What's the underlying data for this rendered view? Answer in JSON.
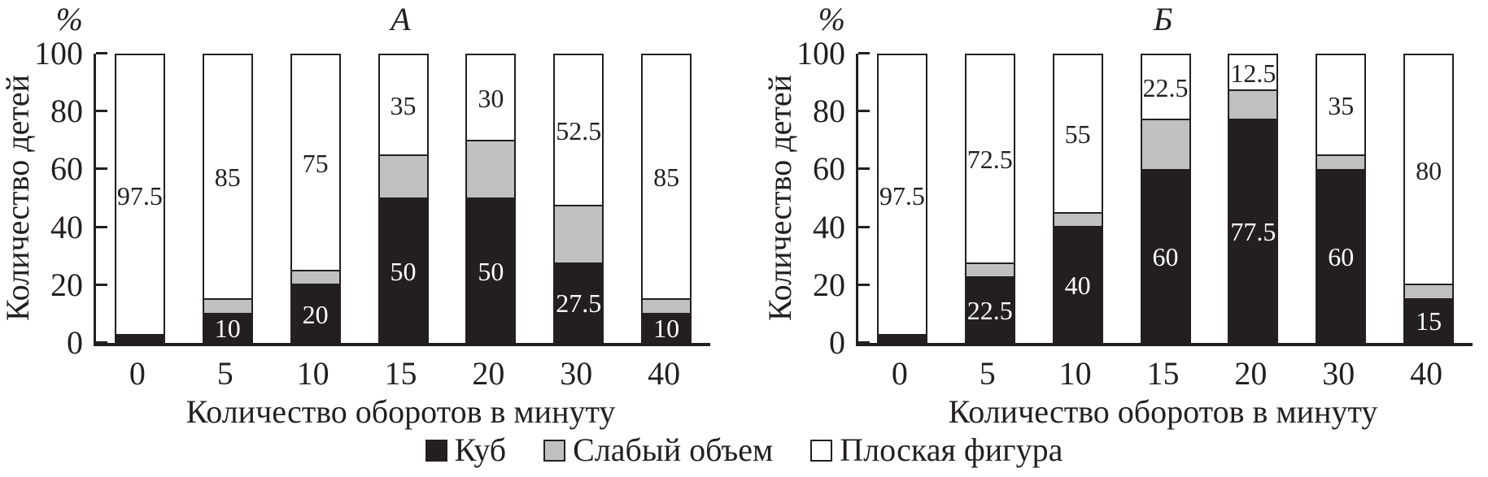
{
  "legend": {
    "items": [
      {
        "label": "Куб",
        "color": "#231f20"
      },
      {
        "label": "Слабый объем",
        "color": "#c0c0c0"
      },
      {
        "label": "Плоская фигура",
        "color": "#ffffff"
      }
    ]
  },
  "colors": {
    "axis": "#231f20",
    "cube": "#231f20",
    "weak_volume": "#c0c0c0",
    "flat_figure": "#ffffff",
    "background": "#ffffff"
  },
  "chart_data": [
    {
      "type": "bar",
      "stacked": true,
      "title": "А",
      "y_unit": "%",
      "ylabel": "Количество детей",
      "xlabel": "Количество оборотов в минуту",
      "ylim": [
        0,
        100
      ],
      "yticks": [
        0,
        20,
        40,
        60,
        80,
        100
      ],
      "grid": false,
      "legend_position": "bottom-center",
      "categories": [
        "0",
        "5",
        "10",
        "15",
        "20",
        "30",
        "40"
      ],
      "series": [
        {
          "name": "Куб",
          "color": "#231f20",
          "label_color": "#ffffff",
          "values": [
            2.5,
            10,
            20,
            50,
            50,
            27.5,
            10
          ],
          "labels": [
            "",
            "10",
            "20",
            "50",
            "50",
            "27.5",
            "10"
          ]
        },
        {
          "name": "Слабый объем",
          "color": "#c0c0c0",
          "label_color": "#231f20",
          "values": [
            0,
            5,
            5,
            15,
            20,
            20,
            5
          ],
          "labels": [
            "",
            "",
            "",
            "",
            "",
            "",
            ""
          ]
        },
        {
          "name": "Плоская фигура",
          "color": "#ffffff",
          "label_color": "#231f20",
          "values": [
            97.5,
            85,
            75,
            35,
            30,
            52.5,
            85
          ],
          "labels": [
            "97.5",
            "85",
            "75",
            "35",
            "30",
            "52.5",
            "85"
          ]
        }
      ]
    },
    {
      "type": "bar",
      "stacked": true,
      "title": "Б",
      "y_unit": "%",
      "ylabel": "Количество детей",
      "xlabel": "Количество оборотов в минуту",
      "ylim": [
        0,
        100
      ],
      "yticks": [
        0,
        20,
        40,
        60,
        80,
        100
      ],
      "grid": false,
      "legend_position": "bottom-center",
      "categories": [
        "0",
        "5",
        "10",
        "15",
        "20",
        "30",
        "40"
      ],
      "series": [
        {
          "name": "Куб",
          "color": "#231f20",
          "label_color": "#ffffff",
          "values": [
            2.5,
            22.5,
            40,
            60,
            77.5,
            60,
            15
          ],
          "labels": [
            "",
            "22.5",
            "40",
            "60",
            "77.5",
            "60",
            "15"
          ]
        },
        {
          "name": "Слабый объем",
          "color": "#c0c0c0",
          "label_color": "#231f20",
          "values": [
            0,
            5,
            5,
            17.5,
            10,
            5,
            5
          ],
          "labels": [
            "",
            "",
            "",
            "",
            "",
            "",
            ""
          ]
        },
        {
          "name": "Плоская фигура",
          "color": "#ffffff",
          "label_color": "#231f20",
          "values": [
            97.5,
            72.5,
            55,
            22.5,
            12.5,
            35,
            80
          ],
          "labels": [
            "97.5",
            "72.5",
            "55",
            "22.5",
            "12.5",
            "35",
            "80"
          ]
        }
      ]
    }
  ]
}
